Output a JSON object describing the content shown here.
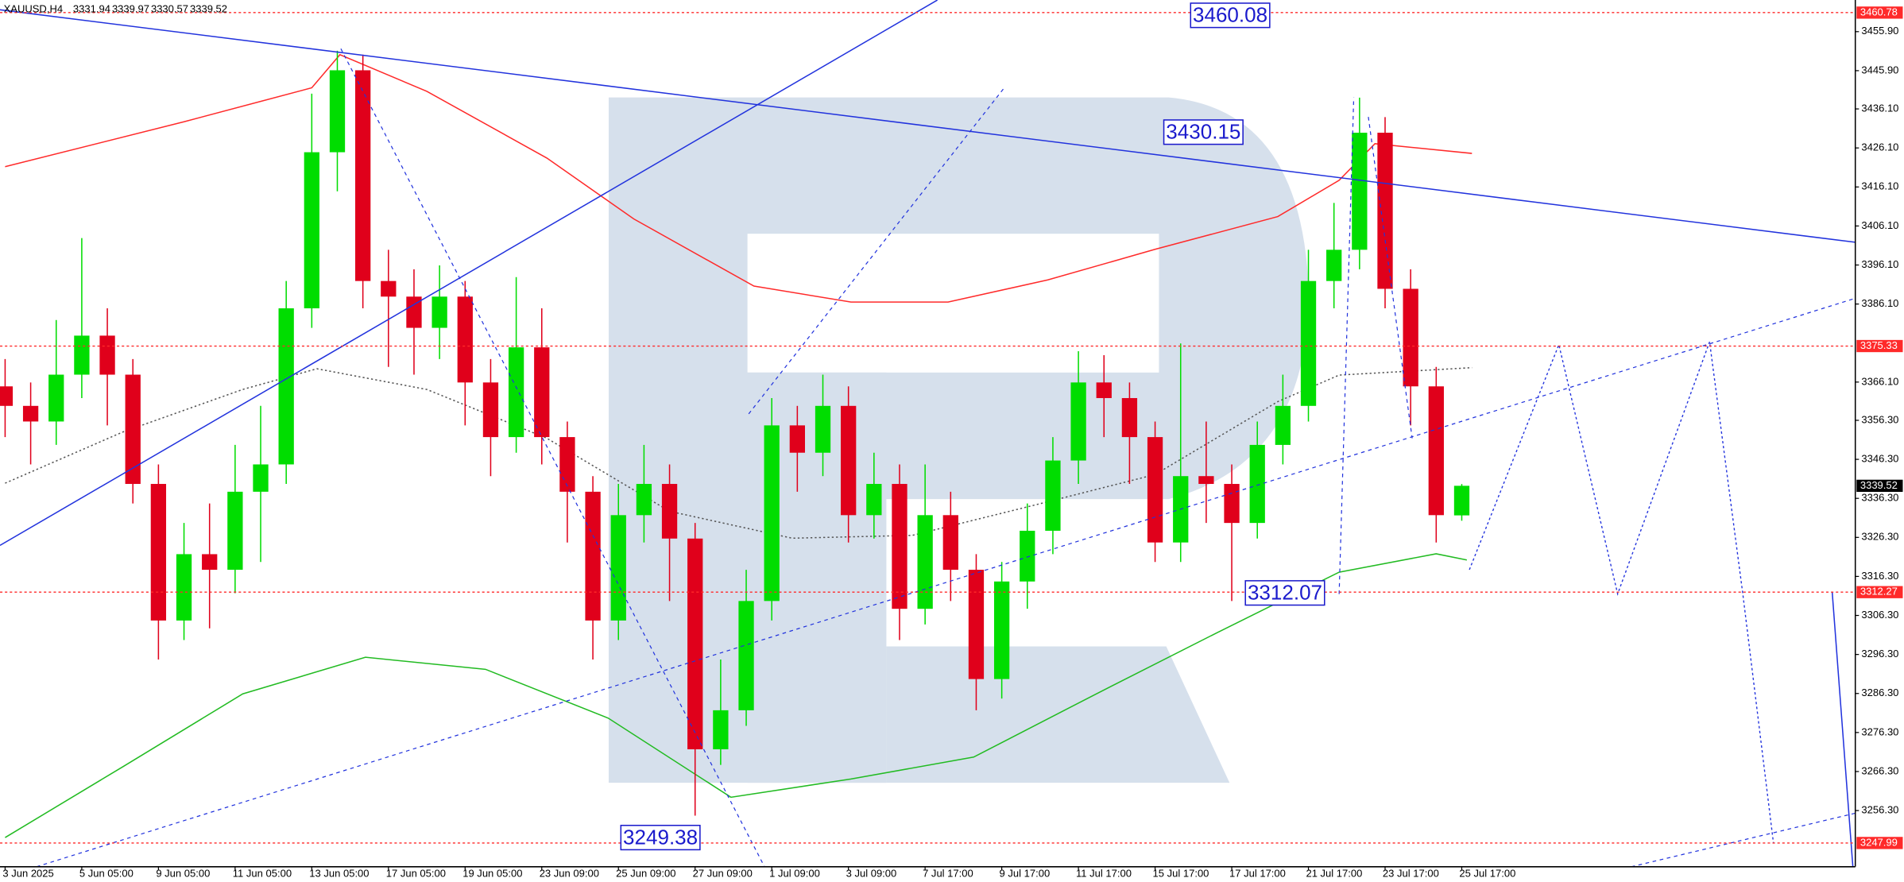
{
  "chart_data": {
    "type": "candlestick",
    "symbol": "XAUUSD,H4",
    "up_color": "#00dd00",
    "down_color": "#e0001b",
    "xlim": [
      -0.2,
      72.4
    ],
    "ylim": [
      3241.9,
      3464.0
    ],
    "xticks": [
      {
        "value": 0,
        "label": "3 Jun 2025"
      },
      {
        "value": 3,
        "label": "5 Jun 05:00"
      },
      {
        "value": 6,
        "label": "9 Jun 05:00"
      },
      {
        "value": 9,
        "label": "11 Jun 05:00"
      },
      {
        "value": 12,
        "label": "13 Jun 05:00"
      },
      {
        "value": 15,
        "label": "17 Jun 05:00"
      },
      {
        "value": 18,
        "label": "19 Jun 05:00"
      },
      {
        "value": 21,
        "label": "23 Jun 09:00"
      },
      {
        "value": 24,
        "label": "25 Jun 09:00"
      },
      {
        "value": 27,
        "label": "27 Jun 09:00"
      },
      {
        "value": 30,
        "label": "1 Jul 09:00"
      },
      {
        "value": 33,
        "label": "3 Jul 09:00"
      },
      {
        "value": 36,
        "label": "7 Jul 17:00"
      },
      {
        "value": 39,
        "label": "9 Jul 17:00"
      },
      {
        "value": 42,
        "label": "11 Jul 17:00"
      },
      {
        "value": 45,
        "label": "15 Jul 17:00"
      },
      {
        "value": 48,
        "label": "17 Jul 17:00"
      },
      {
        "value": 51,
        "label": "21 Jul 17:00"
      },
      {
        "value": 54,
        "label": "23 Jul 17:00"
      },
      {
        "value": 57,
        "label": "25 Jul 17:00"
      }
    ],
    "yticks": [
      {
        "value": 3455.9,
        "label": "3455.90"
      },
      {
        "value": 3445.9,
        "label": "3445.90"
      },
      {
        "value": 3436.1,
        "label": "3436.10"
      },
      {
        "value": 3426.1,
        "label": "3426.10"
      },
      {
        "value": 3416.1,
        "label": "3416.10"
      },
      {
        "value": 3406.1,
        "label": "3406.10"
      },
      {
        "value": 3396.1,
        "label": "3396.10"
      },
      {
        "value": 3386.1,
        "label": "3386.10"
      },
      {
        "value": 3366.1,
        "label": "3366.10"
      },
      {
        "value": 3356.3,
        "label": "3356.30"
      },
      {
        "value": 3346.3,
        "label": "3346.30"
      },
      {
        "value": 3336.3,
        "label": "3336.30"
      },
      {
        "value": 3326.3,
        "label": "3326.30"
      },
      {
        "value": 3316.3,
        "label": "3316.30"
      },
      {
        "value": 3306.3,
        "label": "3306.30"
      },
      {
        "value": 3296.3,
        "label": "3296.30"
      },
      {
        "value": 3286.3,
        "label": "3286.30"
      },
      {
        "value": 3276.3,
        "label": "3276.30"
      },
      {
        "value": 3266.3,
        "label": "3266.30"
      },
      {
        "value": 3256.3,
        "label": "3256.30"
      }
    ],
    "x": [
      0,
      1,
      2,
      3,
      4,
      5,
      6,
      7,
      8,
      9,
      10,
      11,
      12,
      13,
      14,
      15,
      16,
      17,
      18,
      19,
      20,
      21,
      22,
      23,
      24,
      25,
      26,
      27,
      28,
      29,
      30,
      31,
      32,
      33,
      34,
      35,
      36,
      37,
      38,
      39,
      40,
      41,
      42,
      43,
      44,
      45,
      46,
      47,
      48,
      49,
      50,
      51,
      52,
      53,
      54,
      55,
      56,
      57
    ],
    "open": [
      3365,
      3360,
      3356,
      3368,
      3378,
      3368,
      3340,
      3305,
      3322,
      3318,
      3338,
      3345,
      3385,
      3425,
      3446,
      3392,
      3388,
      3380,
      3388,
      3366,
      3352,
      3375,
      3352,
      3338,
      3305,
      3332,
      3340,
      3326,
      3272,
      3282,
      3310,
      3355,
      3348,
      3360,
      3332,
      3340,
      3308,
      3332,
      3318,
      3290,
      3315,
      3328,
      3346,
      3366,
      3362,
      3352,
      3325,
      3342,
      3340,
      3330,
      3350,
      3360,
      3392,
      3400,
      3430,
      3390,
      3365,
      3331.94
    ],
    "high": [
      3372,
      3366,
      3382,
      3403,
      3385,
      3372,
      3345,
      3330,
      3335,
      3350,
      3360,
      3392,
      3440,
      3451,
      3450,
      3400,
      3395,
      3396,
      3392,
      3372,
      3393,
      3385,
      3356,
      3342,
      3340,
      3350,
      3345,
      3330,
      3295,
      3318,
      3362,
      3360,
      3368,
      3365,
      3348,
      3345,
      3345,
      3338,
      3322,
      3320,
      3335,
      3352,
      3374,
      3373,
      3366,
      3356,
      3376,
      3356,
      3345,
      3356,
      3368,
      3400,
      3412,
      3439,
      3434,
      3395,
      3370,
      3339.97
    ],
    "low": [
      3352,
      3345,
      3350,
      3362,
      3355,
      3335,
      3295,
      3300,
      3303,
      3312,
      3320,
      3340,
      3380,
      3415,
      3385,
      3370,
      3368,
      3372,
      3355,
      3342,
      3348,
      3345,
      3325,
      3295,
      3300,
      3325,
      3310,
      3255,
      3268,
      3278,
      3305,
      3338,
      3342,
      3325,
      3326,
      3300,
      3304,
      3310,
      3282,
      3285,
      3308,
      3322,
      3340,
      3352,
      3340,
      3320,
      3320,
      3330,
      3310,
      3326,
      3345,
      3356,
      3385,
      3395,
      3385,
      3355,
      3325,
      3330.57
    ],
    "close": [
      3360,
      3356,
      3368,
      3378,
      3368,
      3340,
      3305,
      3322,
      3318,
      3338,
      3345,
      3385,
      3425,
      3446,
      3392,
      3388,
      3380,
      3388,
      3366,
      3352,
      3375,
      3352,
      3338,
      3305,
      3332,
      3340,
      3326,
      3272,
      3282,
      3310,
      3355,
      3348,
      3360,
      3332,
      3340,
      3308,
      3332,
      3318,
      3290,
      3315,
      3328,
      3346,
      3366,
      3362,
      3352,
      3325,
      3342,
      3340,
      3330,
      3350,
      3360,
      3392,
      3400,
      3430,
      3390,
      3365,
      3332,
      3339.52
    ],
    "moving_averages": [
      {
        "color": "#ff2a2a",
        "style": "solid",
        "x": [
          0,
          7,
          12,
          13.1,
          16.5,
          21.2,
          24.6,
          29.3,
          33.1,
          36.9,
          40.8,
          45,
          49.8,
          52.2,
          53.6,
          57.4
        ],
        "values": [
          3421.3,
          3432.8,
          3441.5,
          3450.0,
          3440.6,
          3423.5,
          3407.9,
          3390.7,
          3386.6,
          3386.6,
          3392.3,
          3400.1,
          3408.5,
          3417.8,
          3427.2,
          3424.7
        ]
      },
      {
        "color": "#22bb22",
        "style": "solid",
        "x": [
          0,
          4.6,
          9.3,
          14.1,
          18.8,
          23.6,
          28.4,
          33.1,
          37.9,
          42.7,
          47.4,
          52.2,
          56,
          57.2
        ],
        "values": [
          3249.4,
          3267.5,
          3286.2,
          3295.6,
          3292.5,
          3280.0,
          3259.7,
          3264.4,
          3270.0,
          3286.2,
          3301.8,
          3317.4,
          3322.1,
          3320.5
        ]
      },
      {
        "color": "#555555",
        "style": "dotted",
        "x": [
          0,
          4.6,
          9.3,
          12.2,
          16.5,
          21.2,
          26,
          30.8,
          35.5,
          40.3,
          45,
          49.8,
          52.2,
          57.4
        ],
        "values": [
          3340.2,
          3353.3,
          3364.2,
          3369.5,
          3364.2,
          3351.7,
          3333.0,
          3326.1,
          3326.8,
          3334.6,
          3342.4,
          3361.1,
          3367.9,
          3369.8
        ]
      }
    ],
    "forecast": {
      "color": "#2233dd",
      "x": [
        57.3,
        60.8,
        63.1,
        66.7,
        68,
        69.2
      ],
      "values": [
        3318.0,
        3375.7,
        3311.8,
        3376.4,
        3311.8,
        3247.9
      ]
    },
    "levels": [
      3460.78,
      3375.33,
      3312.27,
      3247.99
    ],
    "level_color": "#ff2a2a",
    "annotations": [
      3460.08,
      3430.15,
      3312.07,
      3249.38
    ],
    "annotation_color": "#1a1acc"
  }
}
